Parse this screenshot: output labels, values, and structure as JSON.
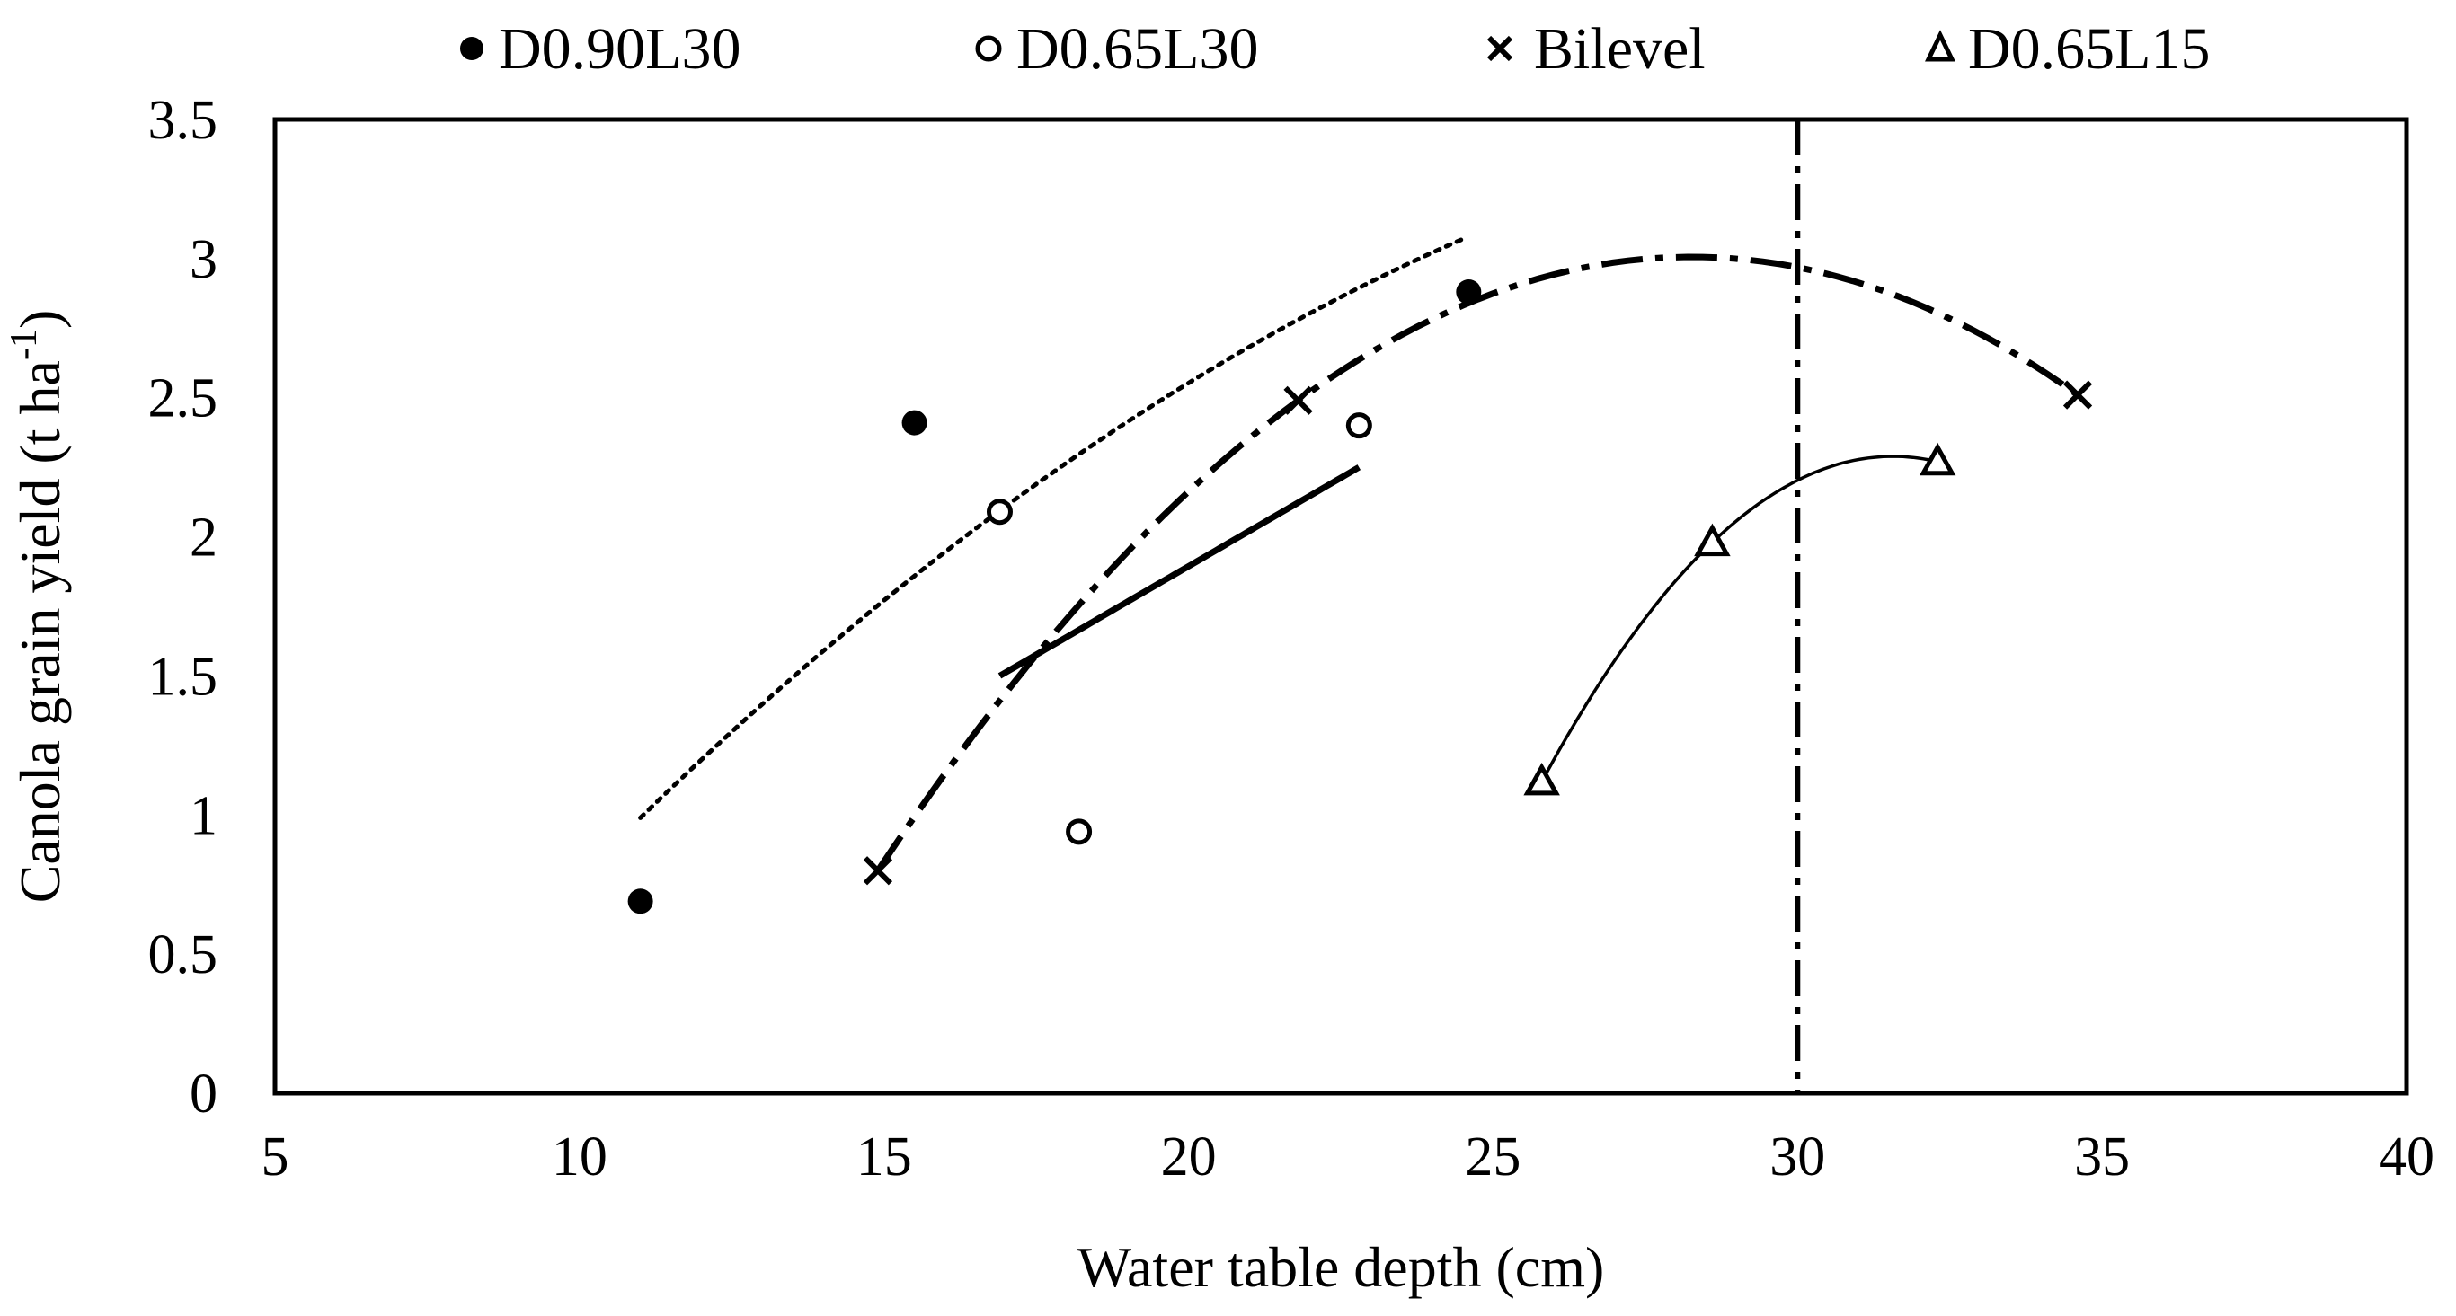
{
  "chart_data": {
    "type": "scatter",
    "title": "",
    "xlabel": "Water table depth (cm)",
    "ylabel": "Canola grain yield (t ha",
    "ylabel_superscript": "-1",
    "ylabel_close": ")",
    "xlim": [
      5,
      40
    ],
    "ylim": [
      0,
      3.5
    ],
    "xticks": [
      "5",
      "10",
      "15",
      "20",
      "25",
      "30",
      "35",
      "40"
    ],
    "yticks": [
      "0",
      "0.5",
      "1",
      "1.5",
      "2",
      "2.5",
      "3",
      "3.5"
    ],
    "grid": false,
    "legend_position": "top",
    "reference_line": {
      "x": 30,
      "style": "dash-dot"
    },
    "series": [
      {
        "name": "D0.90L30",
        "marker": "filled-circle",
        "points": [
          {
            "x": 11.0,
            "y": 0.69
          },
          {
            "x": 15.5,
            "y": 2.41
          },
          {
            "x": 24.6,
            "y": 2.88
          }
        ],
        "trendline": {
          "type": "quadratic",
          "style": "dotted",
          "points": [
            [
              11.0,
              0.99
            ],
            [
              17.0,
              2.11
            ],
            [
              24.5,
              3.07
            ]
          ]
        }
      },
      {
        "name": "D0.65L30",
        "marker": "open-circle",
        "points": [
          {
            "x": 16.9,
            "y": 2.09
          },
          {
            "x": 18.2,
            "y": 0.94
          },
          {
            "x": 22.8,
            "y": 2.4
          }
        ],
        "trendline": {
          "type": "linear",
          "style": "solid-thick",
          "points": [
            [
              16.9,
              1.5
            ],
            [
              22.8,
              2.25
            ]
          ]
        }
      },
      {
        "name": "Bilevel",
        "marker": "x",
        "points": [
          {
            "x": 14.9,
            "y": 0.8
          },
          {
            "x": 21.8,
            "y": 2.49
          },
          {
            "x": 34.6,
            "y": 2.51
          }
        ],
        "trendline": {
          "type": "quadratic",
          "style": "dash-dot",
          "points": [
            [
              14.9,
              0.8
            ],
            [
              21.8,
              2.49
            ],
            [
              34.6,
              2.51
            ]
          ]
        }
      },
      {
        "name": "D0.65L15",
        "marker": "open-triangle",
        "points": [
          {
            "x": 25.8,
            "y": 1.12
          },
          {
            "x": 28.6,
            "y": 1.98
          },
          {
            "x": 32.3,
            "y": 2.27
          }
        ],
        "trendline": {
          "type": "quadratic",
          "style": "solid-thin",
          "points": [
            [
              25.8,
              1.12
            ],
            [
              28.6,
              1.98
            ],
            [
              32.3,
              2.27
            ]
          ]
        }
      }
    ]
  }
}
